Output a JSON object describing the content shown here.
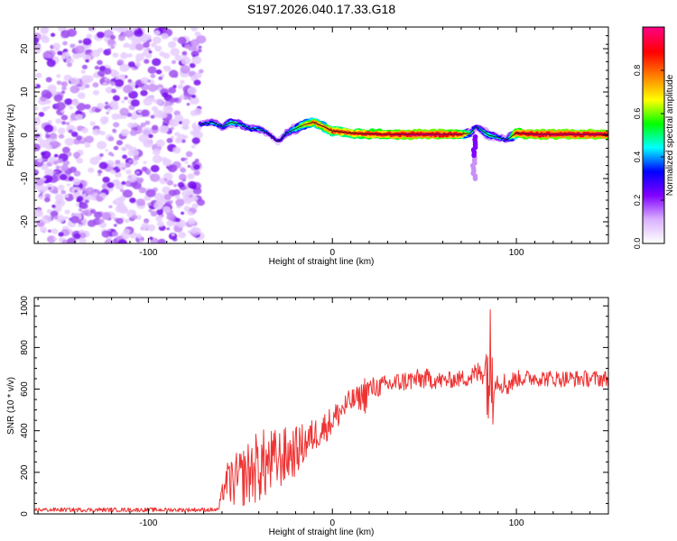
{
  "figure_title": "S197.2026.040.17.33.G18",
  "chart_data": [
    {
      "type": "heatmap",
      "title": "S197.2026.040.17.33.G18",
      "xlabel": "Height of straight line (km)",
      "ylabel": "Frequency (Hz)",
      "xlim": [
        -162,
        150
      ],
      "ylim": [
        -25,
        25
      ],
      "xticks": [
        -100,
        0,
        100
      ],
      "xtick_labels": [
        "-100",
        "0",
        "100"
      ],
      "yticks": [
        -20,
        -10,
        0,
        10,
        20
      ],
      "ytick_labels": [
        "-20",
        "-10",
        "0",
        "10",
        "20"
      ],
      "colorbar": {
        "label": "Normalized spectral amplitude",
        "range": [
          0,
          1
        ],
        "ticks": [
          0.0,
          0.2,
          0.4,
          0.6,
          0.8
        ],
        "tick_labels": [
          "0.0",
          "0.2",
          "0.4",
          "0.6",
          "0.8"
        ],
        "colors": [
          "#ffffff",
          "#d9b0ff",
          "#8000ff",
          "#0000ff",
          "#00ffff",
          "#00ff00",
          "#ffff00",
          "#ff8000",
          "#ff0000",
          "#ff007f"
        ]
      },
      "noise_region_x": [
        -162,
        -72
      ],
      "ridge": {
        "x": [
          -72,
          -65,
          -60,
          -55,
          -50,
          -45,
          -40,
          -35,
          -30,
          -28,
          -25,
          -20,
          -15,
          -10,
          -5,
          0,
          5,
          10,
          20,
          30,
          40,
          60,
          70,
          75,
          78,
          80,
          85,
          90,
          95,
          100,
          110,
          120,
          130,
          140,
          150
        ],
        "frequency": [
          2.5,
          3.0,
          2.0,
          3.0,
          2.5,
          1.5,
          1.5,
          0.5,
          -1.5,
          -1.0,
          0.5,
          1.5,
          2.5,
          3.0,
          2.0,
          1.0,
          0.8,
          0.5,
          0.3,
          0.2,
          0.2,
          0.2,
          0.2,
          0.5,
          2.0,
          1.5,
          0.0,
          -0.5,
          -1.0,
          0.5,
          0.2,
          0.2,
          0.2,
          0.2,
          0.2
        ],
        "amplitude": [
          0.3,
          0.4,
          0.35,
          0.5,
          0.4,
          0.35,
          0.4,
          0.3,
          0.25,
          0.3,
          0.35,
          0.5,
          0.7,
          0.8,
          0.75,
          0.85,
          0.85,
          0.85,
          0.9,
          0.9,
          0.95,
          0.95,
          0.9,
          0.5,
          0.3,
          0.4,
          0.5,
          0.4,
          0.3,
          0.9,
          0.95,
          0.95,
          0.95,
          0.95,
          0.95
        ]
      },
      "glitch": {
        "x": 77,
        "frequency_range": [
          -10,
          0
        ]
      }
    },
    {
      "type": "line",
      "xlabel": "Height of straight line (km)",
      "ylabel": "SNR (10 * v/v)",
      "xlim": [
        -162,
        150
      ],
      "ylim": [
        0,
        1040
      ],
      "xticks": [
        -100,
        0,
        100
      ],
      "xtick_labels": [
        "-100",
        "0",
        "100"
      ],
      "yticks": [
        0,
        200,
        400,
        600,
        800,
        1000
      ],
      "ytick_labels": [
        "0",
        "200",
        "400",
        "600",
        "800",
        "1000"
      ],
      "line_color": "#ee3333",
      "series": [
        {
          "name": "SNR",
          "x": [
            -162,
            -140,
            -120,
            -100,
            -80,
            -62,
            -58,
            -55,
            -50,
            -45,
            -40,
            -35,
            -30,
            -25,
            -20,
            -15,
            -10,
            -5,
            0,
            5,
            10,
            15,
            18,
            20,
            25,
            30,
            40,
            50,
            60,
            70,
            75,
            80,
            83,
            85,
            87,
            88,
            90,
            95,
            100,
            110,
            120,
            130,
            140,
            150
          ],
          "y": [
            20,
            20,
            20,
            20,
            20,
            20,
            160,
            150,
            170,
            200,
            230,
            240,
            260,
            280,
            300,
            340,
            380,
            410,
            450,
            500,
            540,
            560,
            580,
            600,
            610,
            620,
            640,
            650,
            640,
            650,
            660,
            680,
            700,
            700,
            680,
            650,
            640,
            620,
            650,
            655,
            650,
            650,
            650,
            650
          ],
          "noise": [
            10,
            10,
            10,
            10,
            10,
            10,
            80,
            120,
            140,
            160,
            180,
            170,
            150,
            140,
            120,
            100,
            80,
            80,
            70,
            70,
            60,
            60,
            100,
            60,
            50,
            50,
            50,
            50,
            40,
            40,
            50,
            60,
            80,
            350,
            300,
            60,
            50,
            60,
            40,
            40,
            40,
            40,
            40,
            40
          ]
        }
      ]
    }
  ]
}
